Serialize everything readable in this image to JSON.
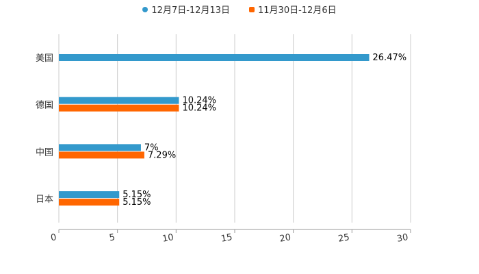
{
  "chart_data": {
    "type": "bar",
    "orientation": "horizontal",
    "categories": [
      "美国",
      "德国",
      "中国",
      "日本"
    ],
    "series": [
      {
        "name": "12月7日-12月13日",
        "color": "#3399cc",
        "values": [
          26.47,
          10.24,
          7,
          5.15
        ],
        "labels": [
          "26.47%",
          "10.24%",
          "7%",
          "5.15%"
        ]
      },
      {
        "name": "11月30日-12月6日",
        "color": "#ff6600",
        "values": [
          null,
          10.24,
          7.29,
          5.15
        ],
        "labels": [
          "",
          "10.24%",
          "7.29%",
          "5.15%"
        ]
      }
    ],
    "xlim": [
      0,
      30
    ],
    "xticks": [
      "0",
      "5",
      "10",
      "15",
      "20",
      "25",
      "30"
    ],
    "grid": true,
    "legend_position": "top-center",
    "title": "",
    "xlabel": "",
    "ylabel": ""
  }
}
